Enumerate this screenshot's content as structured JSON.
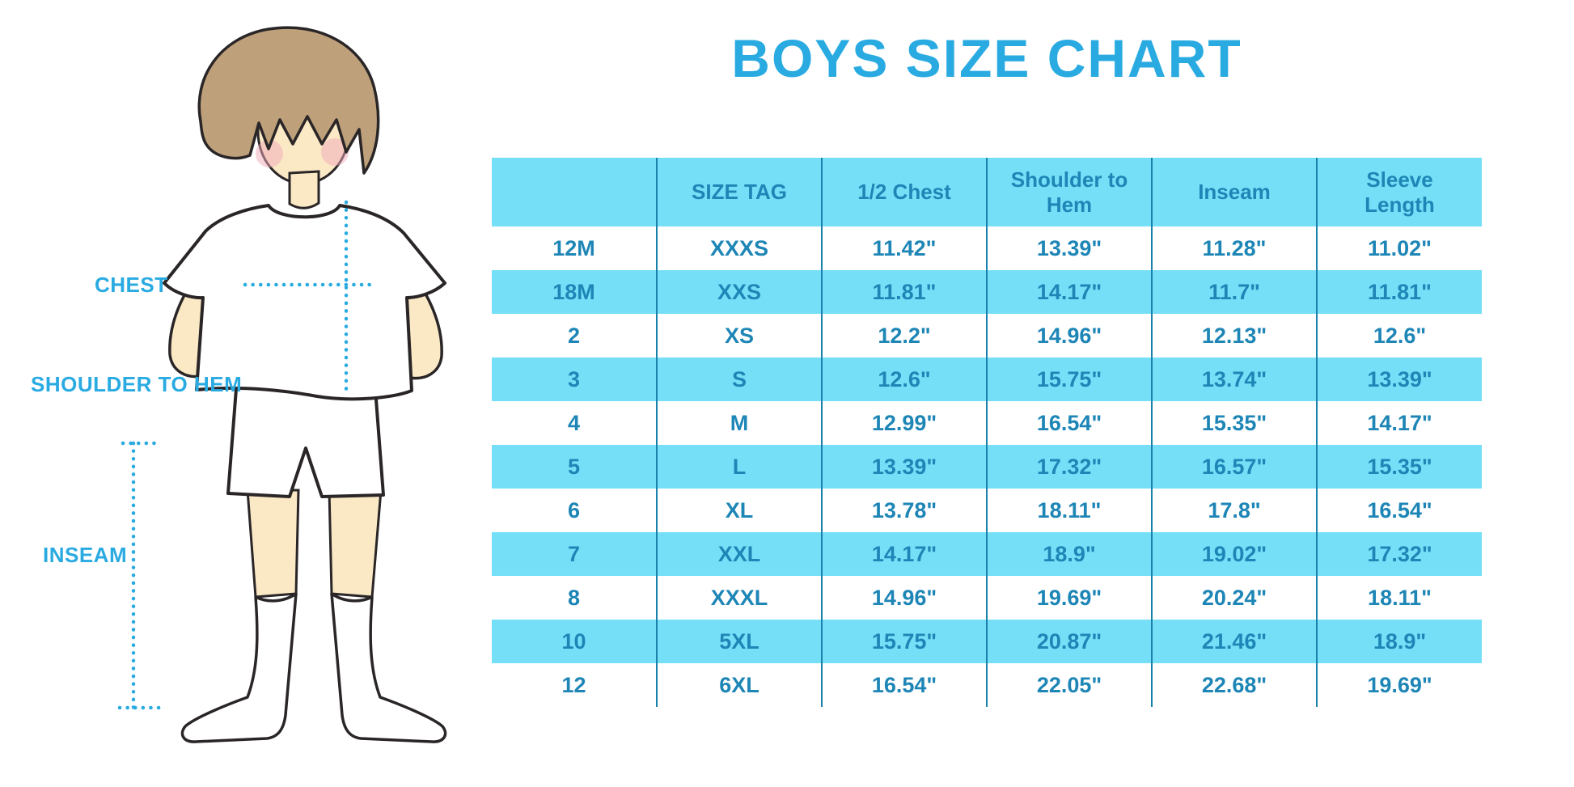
{
  "header": {
    "title": "BOYS SIZE CHART"
  },
  "diagram": {
    "labels": {
      "chest": "CHEST",
      "shoulder_to_hem": "SHOULDER TO HEM",
      "inseam": "INSEAM"
    }
  },
  "chart_data": {
    "type": "table",
    "title": "BOYS SIZE CHART",
    "units": "inches",
    "columns": [
      "",
      "SIZE TAG",
      "1/2 Chest",
      "Shoulder to Hem",
      "Inseam",
      "Sleeve Length"
    ],
    "rows": [
      [
        "12M",
        "XXXS",
        "11.42\"",
        "13.39\"",
        "11.28\"",
        "11.02\""
      ],
      [
        "18M",
        "XXS",
        "11.81\"",
        "14.17\"",
        "11.7\"",
        "11.81\""
      ],
      [
        "2",
        "XS",
        "12.2\"",
        "14.96\"",
        "12.13\"",
        "12.6\""
      ],
      [
        "3",
        "S",
        "12.6\"",
        "15.75\"",
        "13.74\"",
        "13.39\""
      ],
      [
        "4",
        "M",
        "12.99\"",
        "16.54\"",
        "15.35\"",
        "14.17\""
      ],
      [
        "5",
        "L",
        "13.39\"",
        "17.32\"",
        "16.57\"",
        "15.35\""
      ],
      [
        "6",
        "XL",
        "13.78\"",
        "18.11\"",
        "17.8\"",
        "16.54\""
      ],
      [
        "7",
        "XXL",
        "14.17\"",
        "18.9\"",
        "19.02\"",
        "17.32\""
      ],
      [
        "8",
        "XXXL",
        "14.96\"",
        "19.69\"",
        "20.24\"",
        "18.11\""
      ],
      [
        "10",
        "5XL",
        "15.75\"",
        "20.87\"",
        "21.46\"",
        "18.9\""
      ],
      [
        "12",
        "6XL",
        "16.54\"",
        "22.05\"",
        "22.68\"",
        "19.69\""
      ]
    ],
    "row_banding": "alternating white / cyan, header cyan"
  },
  "colors": {
    "accent_blue": "#29ABE2",
    "band_cyan": "#76DFF8",
    "divider_blue": "#1A81AD",
    "table_text_blue": "#1E86B6",
    "hair_tan": "#BEA17B",
    "skin": "#FBE9C6",
    "blush_pink": "#F2A9B9",
    "outline": "#2A2627"
  }
}
